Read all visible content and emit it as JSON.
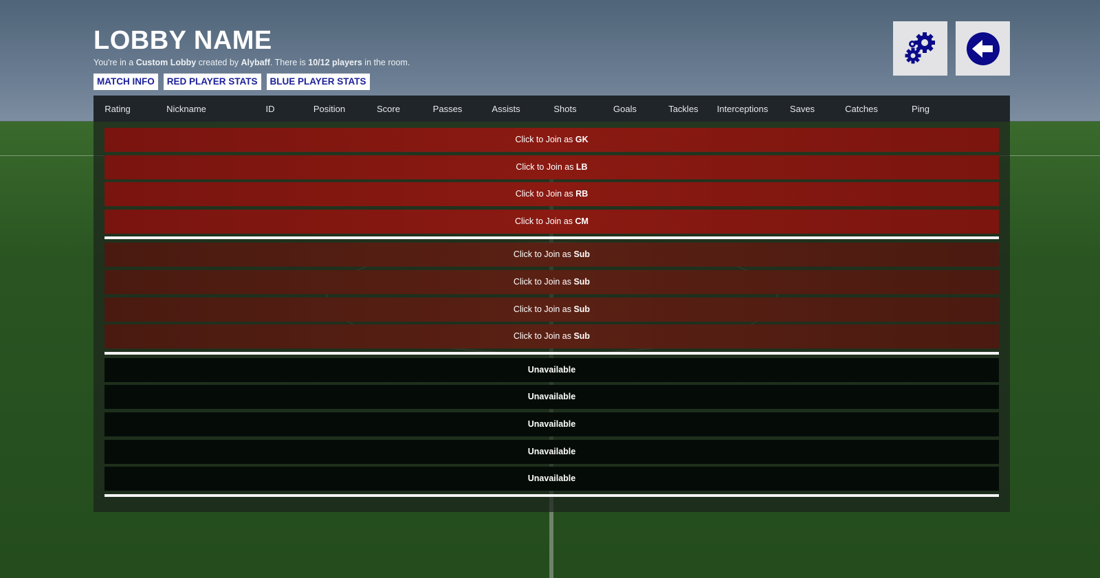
{
  "lobby": {
    "title": "LOBBY NAME",
    "subtitle_parts": {
      "p1": "You're in a ",
      "lobby_type": "Custom Lobby",
      "p2": " created by ",
      "creator": "Alybaff",
      "p3": ". There is ",
      "players": "10/12 players",
      "p4": " in the room."
    }
  },
  "tabs": [
    {
      "label": "MATCH INFO"
    },
    {
      "label": "RED PLAYER STATS"
    },
    {
      "label": "BLUE PLAYER STATS"
    }
  ],
  "buttons": {
    "settings_icon": "gears-icon",
    "back_icon": "arrow-left-icon",
    "accent": "#0a0a8a"
  },
  "columns": [
    "Rating",
    "Nickname",
    "ID",
    "Position",
    "Score",
    "Passes",
    "Assists",
    "Shots",
    "Goals",
    "Tackles",
    "Interceptions",
    "Saves",
    "Catches",
    "Ping"
  ],
  "join_prefix": "Click to Join as ",
  "starters": [
    "GK",
    "LB",
    "RB",
    "CM"
  ],
  "subs": [
    "Sub",
    "Sub",
    "Sub",
    "Sub"
  ],
  "unavailable": [
    "Unavailable",
    "Unavailable",
    "Unavailable",
    "Unavailable",
    "Unavailable"
  ],
  "colors": {
    "starter_row": "#7a140f",
    "sub_row": "#4e1c12",
    "tab_text": "#1b1f9a"
  }
}
